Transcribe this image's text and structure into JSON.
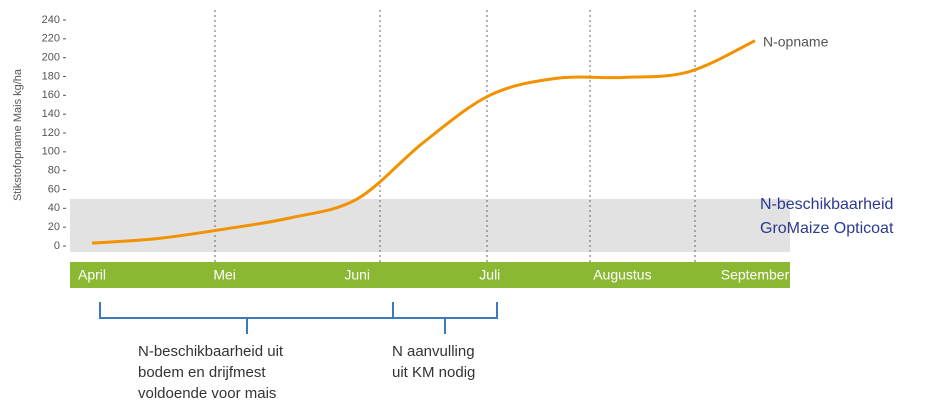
{
  "chart_data": {
    "type": "line",
    "y_label": "Stikstofopname Mais kg/ha",
    "categories": [
      "April",
      null,
      "Mei",
      null,
      "Juni",
      null,
      "Juli",
      null,
      "Augustus",
      null,
      "September"
    ],
    "series": [
      {
        "name": "N-opname",
        "color": "#f39200",
        "values": [
          3,
          8,
          18,
          30,
          50,
          110,
          160,
          178,
          179,
          185,
          218
        ]
      }
    ],
    "ylim": [
      0,
      240
    ],
    "yticks": [
      0,
      20,
      40,
      60,
      80,
      100,
      120,
      140,
      160,
      180,
      200,
      220,
      240
    ],
    "availability": {
      "value": 50,
      "label": "N-beschikbaarheid GroMaize Opticoat",
      "color": "#e2e2e2"
    },
    "band_color": "#8ab833",
    "brackets": [
      {
        "text": [
          "N-beschikbaarheid uit",
          "bodem en drijfmest",
          "voldoende voor mais"
        ]
      },
      {
        "text": [
          "N aanvulling",
          "uit KM nodig"
        ]
      }
    ]
  }
}
